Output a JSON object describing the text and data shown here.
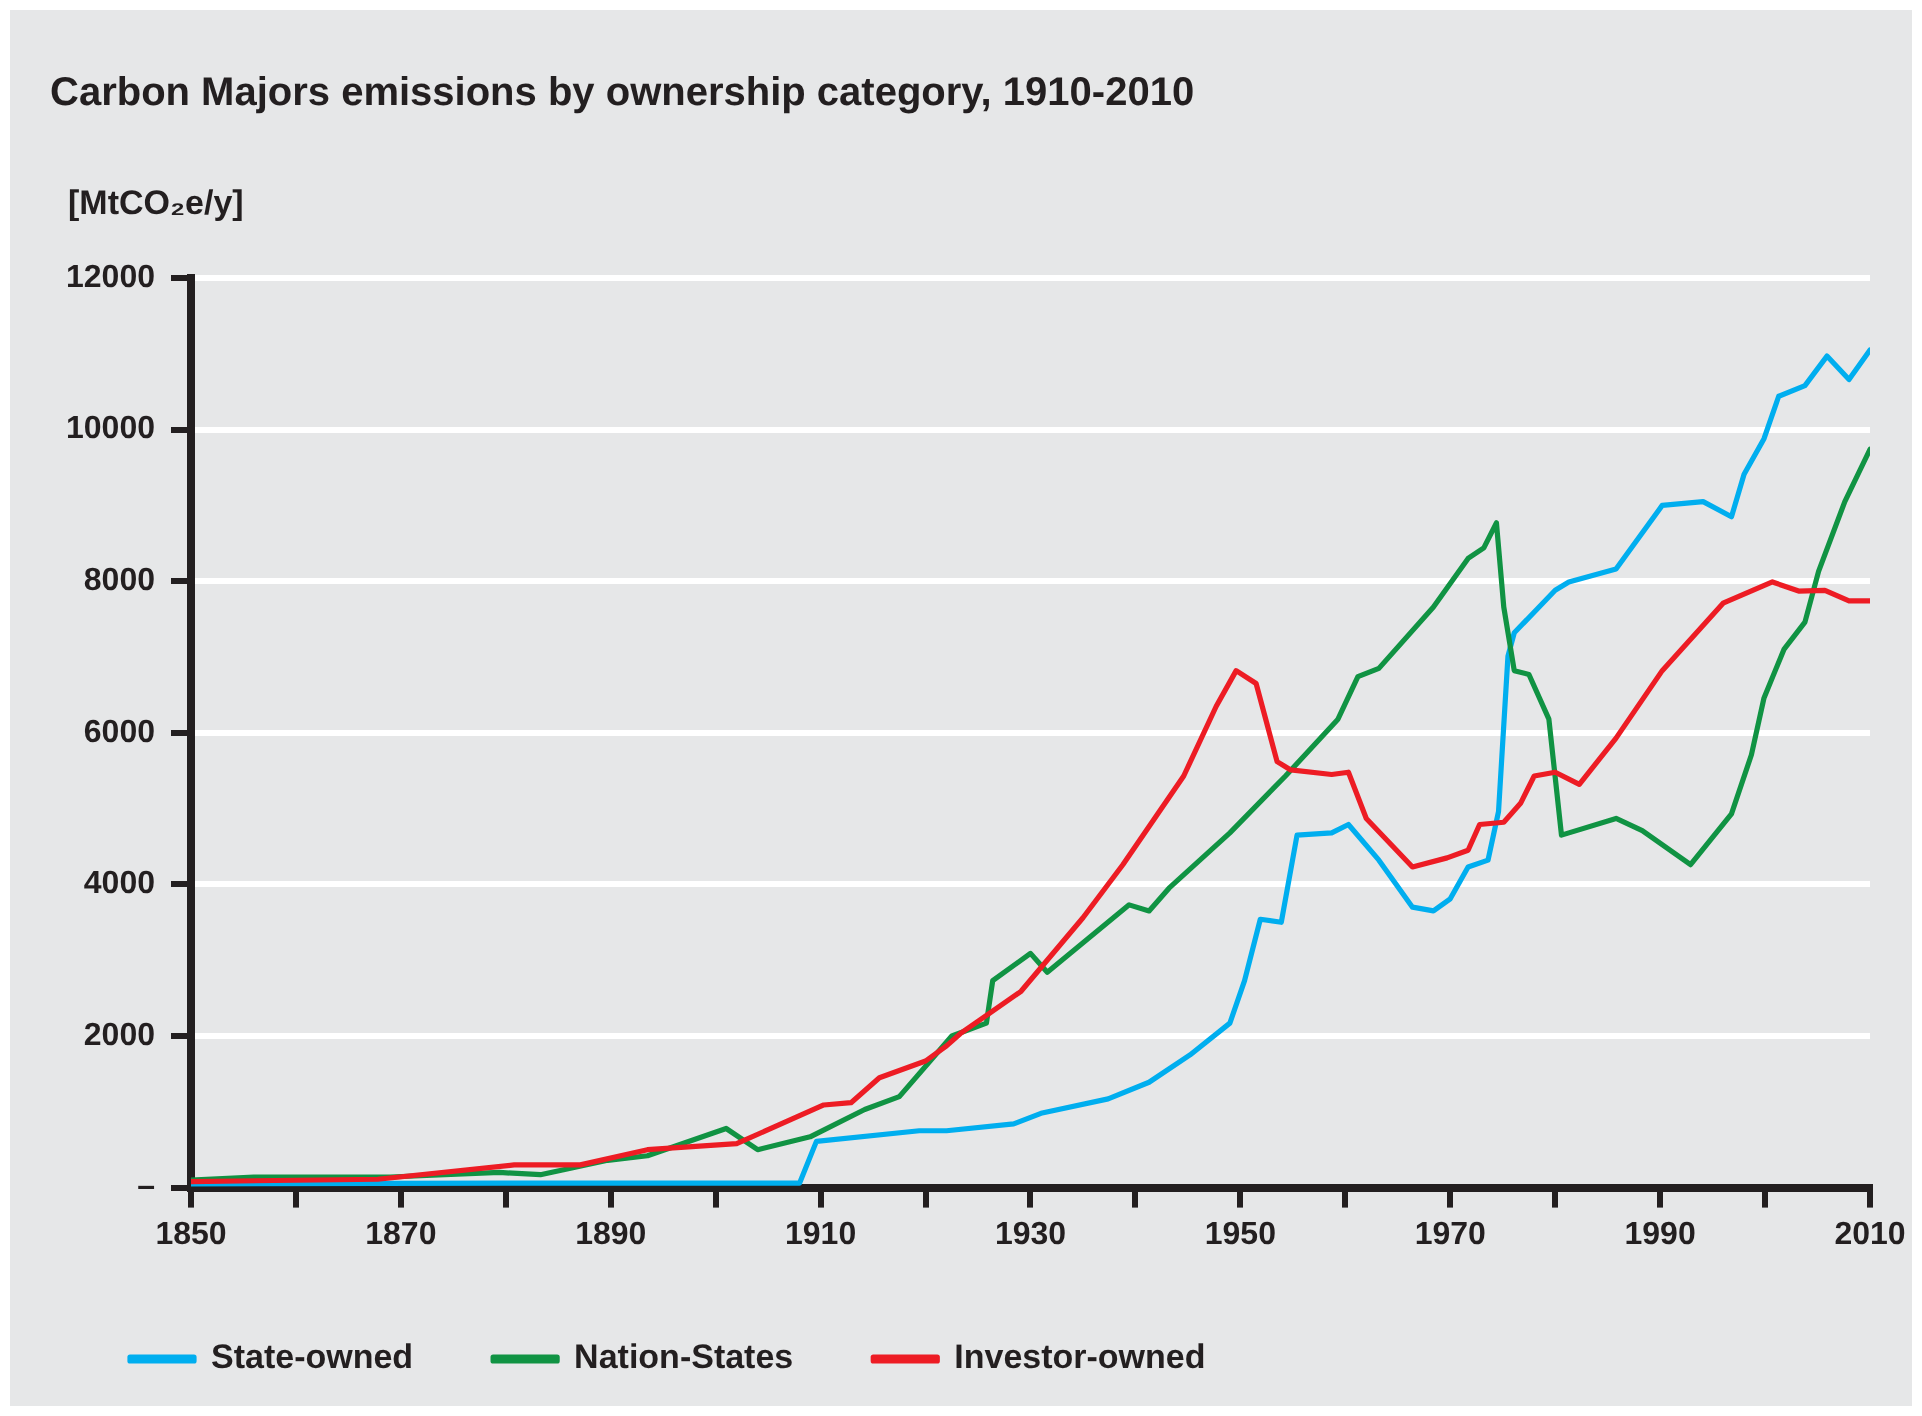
{
  "chart_data": {
    "type": "line",
    "title": "Carbon Majors emissions by ownership category, 1910-2010",
    "ylabel": "[MtCO₂e/y]",
    "xlim": [
      1850,
      2010
    ],
    "xticks": [
      1850,
      {
        "value": 1860,
        "label": null
      },
      1870,
      {
        "value": 1880,
        "label": null
      },
      1890,
      {
        "value": 1900,
        "label": null
      },
      1910,
      {
        "value": 1920,
        "label": null
      },
      1930,
      {
        "value": 1940,
        "label": null
      },
      1950,
      {
        "value": 1960,
        "label": null
      },
      1970,
      {
        "value": 1980,
        "label": null
      },
      1990,
      {
        "value": 2000,
        "label": null
      },
      2010
    ],
    "ylim": [
      0,
      12000
    ],
    "yticks": [
      {
        "value": 0,
        "label": "–"
      },
      2000,
      4000,
      6000,
      8000,
      10000,
      12000
    ],
    "grid": "y",
    "legend": "bottom left",
    "marker": "none",
    "line_style": "solid",
    "series": [
      {
        "name": "State-owned",
        "color": "#00aeef",
        "x": [
          1850,
          1880,
          1908,
          1909.6,
          1919.4,
          1922,
          1928.4,
          1931,
          1937.4,
          1941.3,
          1945.2,
          1949,
          1950.4,
          1951.9,
          1953.9,
          1955.4,
          1958.7,
          1960.3,
          1963.2,
          1966.4,
          1968.4,
          1970,
          1971.7,
          1973.6,
          1974.6,
          1975.5,
          1976.1,
          1980,
          1981.3,
          1985.8,
          1990.2,
          1994.1,
          1996.8,
          1998,
          1999.9,
          2001.3,
          2003.8,
          2005.9,
          2008,
          2010
        ],
        "values": [
          50,
          60,
          60,
          610,
          750,
          750,
          840,
          980,
          1170,
          1390,
          1750,
          2170,
          2730,
          3540,
          3500,
          4650,
          4680,
          4790,
          4320,
          3700,
          3650,
          3810,
          4230,
          4320,
          4960,
          7010,
          7320,
          7880,
          7990,
          8160,
          9000,
          9050,
          8850,
          9410,
          9880,
          10440,
          10580,
          10970,
          10660,
          11050
        ]
      },
      {
        "name": "Nation-States",
        "color": "#109343",
        "x": [
          1850,
          1856,
          1869,
          1879.4,
          1883.3,
          1889.7,
          1893.5,
          1901,
          1904,
          1909,
          1914.2,
          1917.5,
          1922.5,
          1925.8,
          1926.4,
          1930,
          1931.6,
          1939.4,
          1941.3,
          1943.2,
          1949,
          1954.3,
          1959.3,
          1961.2,
          1963.2,
          1968.4,
          1971.7,
          1973.2,
          1974.4,
          1975.1,
          1976.1,
          1977.5,
          1979.4,
          1980.6,
          1985.8,
          1988.3,
          1992.9,
          1996.8,
          1998.7,
          1999.9,
          2001.8,
          2003.8,
          2005.1,
          2007.6,
          2010
        ],
        "values": [
          100,
          140,
          140,
          200,
          170,
          360,
          420,
          780,
          500,
          670,
          1030,
          1200,
          2000,
          2170,
          2730,
          3090,
          2840,
          3730,
          3650,
          3950,
          4680,
          5430,
          6180,
          6740,
          6850,
          7660,
          8300,
          8440,
          8770,
          7660,
          6820,
          6770,
          6180,
          4650,
          4870,
          4710,
          4260,
          4930,
          5710,
          6460,
          7100,
          7460,
          8130,
          9050,
          9740
        ]
      },
      {
        "name": "Investor-owned",
        "color": "#ed1c24",
        "x": [
          1850,
          1867.8,
          1880.8,
          1887.1,
          1893.5,
          1902,
          1910.3,
          1912.9,
          1915.6,
          1920,
          1922,
          1923.3,
          1929.1,
          1935,
          1938.8,
          1944.6,
          1947.7,
          1949.6,
          1951.5,
          1953.5,
          1954.8,
          1958.7,
          1960.3,
          1962,
          1966.4,
          1969.7,
          1971.7,
          1972.8,
          1975.1,
          1976.7,
          1978,
          1980,
          1982.3,
          1985.8,
          1990.2,
          1996,
          2000.7,
          2003.2,
          2005.7,
          2008,
          2010
        ],
        "values": [
          80,
          110,
          300,
          300,
          500,
          580,
          1090,
          1120,
          1450,
          1670,
          1870,
          2030,
          2590,
          3560,
          4260,
          5430,
          6350,
          6820,
          6650,
          5620,
          5510,
          5450,
          5480,
          4870,
          4230,
          4350,
          4450,
          4790,
          4820,
          5070,
          5430,
          5480,
          5320,
          5930,
          6820,
          7710,
          7990,
          7870,
          7880,
          7740,
          7740
        ]
      }
    ]
  }
}
